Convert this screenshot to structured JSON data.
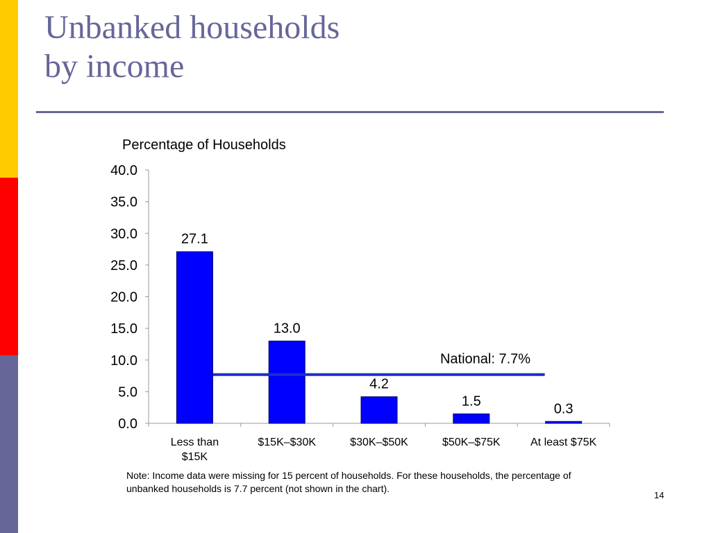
{
  "slide": {
    "title_line1": "Unbanked households",
    "title_line2": "by income",
    "note": "Note: Income data were missing for 15 percent of households. For these households, the percentage of unbanked households is 7.7 percent (not shown in the chart).",
    "page_number": "14"
  },
  "colors": {
    "title_text": "#666699",
    "rule": "#666699",
    "accent_yellow": "#FFCC00",
    "accent_red": "#FF0000",
    "accent_slate": "#666699",
    "bar_fill": "#0000FF",
    "national_line": "#1A2FCC"
  },
  "chart_data": {
    "type": "bar",
    "ylabel": "Percentage of Households",
    "categories": [
      [
        "Less than",
        "$15K"
      ],
      [
        "$15K–$30K"
      ],
      [
        "$30K–$50K"
      ],
      [
        "$50K–$75K"
      ],
      [
        "At least $75K"
      ]
    ],
    "values": [
      27.1,
      13.0,
      4.2,
      1.5,
      0.3
    ],
    "value_labels": [
      "27.1",
      "13.0",
      "4.2",
      "1.5",
      "0.3"
    ],
    "ylim": [
      0,
      40
    ],
    "yticks": [
      "0.0",
      "5.0",
      "10.0",
      "15.0",
      "20.0",
      "25.0",
      "30.0",
      "35.0",
      "40.0"
    ],
    "grid": false,
    "reference_line": {
      "value": 7.7,
      "label": "National: 7.7%"
    }
  }
}
